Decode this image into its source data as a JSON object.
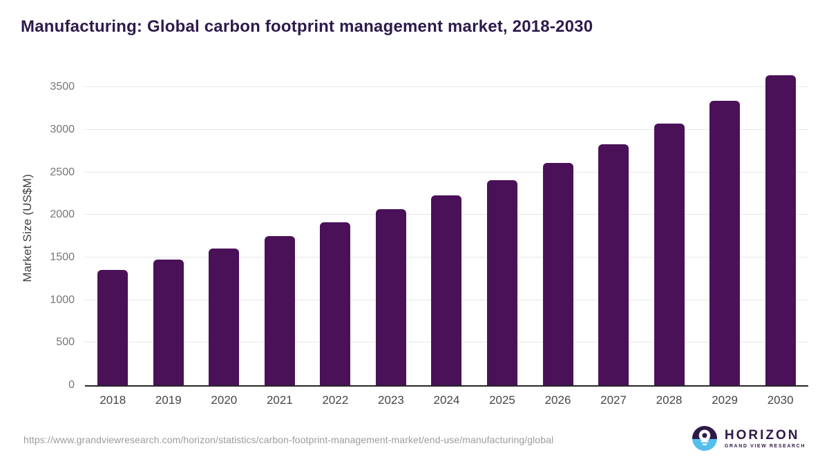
{
  "page": {
    "title": "Manufacturing: Global carbon footprint management market, 2018-2030"
  },
  "footer": {
    "source_url": "https://www.grandviewresearch.com/horizon/statistics/carbon-footprint-management-market/end-use/manufacturing/global",
    "logo": {
      "icon": "horizon-sunset-circle-icon",
      "title": "HORIZON",
      "subtitle": "GRAND VIEW RESEARCH"
    }
  },
  "colors": {
    "title": "#2d1b4b",
    "bar": "#4a1159",
    "grid": "#e7e7e7",
    "axis_line": "#262626",
    "tick_label": "#767676",
    "x_label": "#454545",
    "url": "#9c9c9c",
    "logo_purple": "#2e1a47",
    "logo_blue": "#54bfec"
  },
  "chart_data": {
    "type": "bar",
    "title": "Manufacturing: Global carbon footprint management market, 2018-2030",
    "xlabel": "",
    "ylabel": "Market Size (US$M)",
    "categories": [
      "2018",
      "2019",
      "2020",
      "2021",
      "2022",
      "2023",
      "2024",
      "2025",
      "2026",
      "2027",
      "2028",
      "2029",
      "2030"
    ],
    "values": [
      1350,
      1475,
      1605,
      1750,
      1910,
      2065,
      2230,
      2410,
      2610,
      2830,
      3070,
      3340,
      3640
    ],
    "ylim": [
      0,
      3728
    ],
    "yticks": [
      0,
      500,
      1000,
      1500,
      2000,
      2500,
      3000,
      3500
    ],
    "grid": true,
    "legend": false,
    "bar_color": "#4a1159"
  }
}
